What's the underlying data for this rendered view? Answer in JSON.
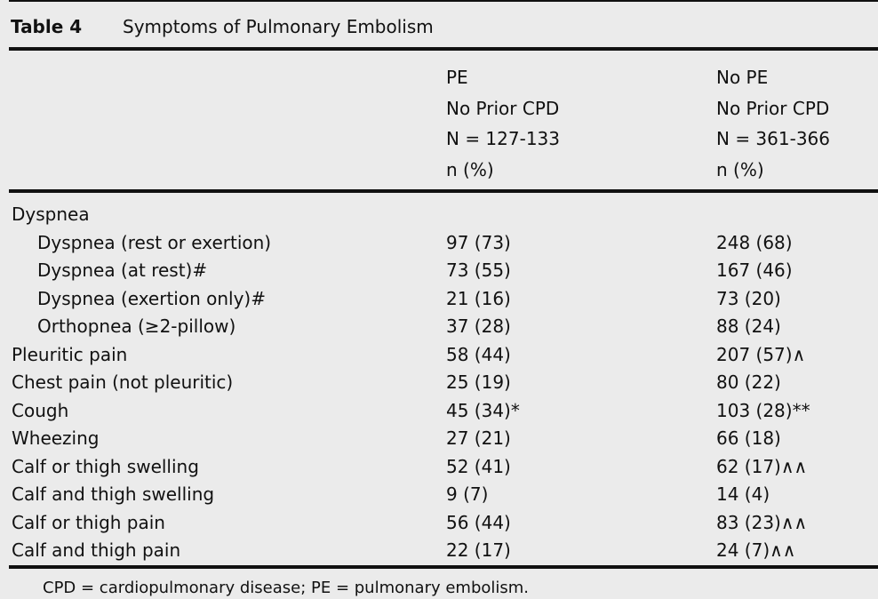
{
  "header": {
    "label": "Table 4",
    "title": "Symptoms of Pulmonary Embolism"
  },
  "table": {
    "columns": [
      [
        "PE",
        "No Prior CPD",
        "N = 127-133",
        "n (%)"
      ],
      [
        "No PE",
        "No Prior CPD",
        "N = 361-366",
        "n (%)"
      ]
    ],
    "rows": [
      {
        "label": "Dyspnea",
        "cells": [],
        "children": [
          {
            "label": "Dyspnea (rest or exertion)",
            "cells": [
              "97 (73)",
              "248 (68)"
            ]
          },
          {
            "label": "Dyspnea (at rest)#",
            "cells": [
              "73 (55)",
              "167 (46)"
            ]
          },
          {
            "label": "Dyspnea (exertion only)#",
            "cells": [
              "21 (16)",
              "73 (20)"
            ]
          },
          {
            "label": "Orthopnea (≥2-pillow)",
            "cells": [
              "37 (28)",
              "88 (24)"
            ]
          }
        ]
      },
      {
        "label": "Pleuritic pain",
        "cells": [
          "58 (44)",
          "207 (57)∧"
        ]
      },
      {
        "label": "Chest pain (not pleuritic)",
        "cells": [
          "25 (19)",
          "80 (22)"
        ]
      },
      {
        "label": "Cough",
        "cells": [
          "45 (34)*",
          "103 (28)**"
        ]
      },
      {
        "label": "Wheezing",
        "cells": [
          "27 (21)",
          "66 (18)"
        ]
      },
      {
        "label": "Calf or thigh swelling",
        "cells": [
          "52 (41)",
          "62 (17)∧∧"
        ]
      },
      {
        "label": "Calf and thigh swelling",
        "cells": [
          "9 (7)",
          "14 (4)"
        ]
      },
      {
        "label": "Calf or thigh pain",
        "cells": [
          "56 (44)",
          "83 (23)∧∧"
        ]
      },
      {
        "label": "Calf and thigh pain",
        "cells": [
          "22 (17)",
          "24 (7)∧∧"
        ]
      }
    ]
  },
  "footnote": "CPD = cardiopulmonary disease; PE = pulmonary embolism."
}
